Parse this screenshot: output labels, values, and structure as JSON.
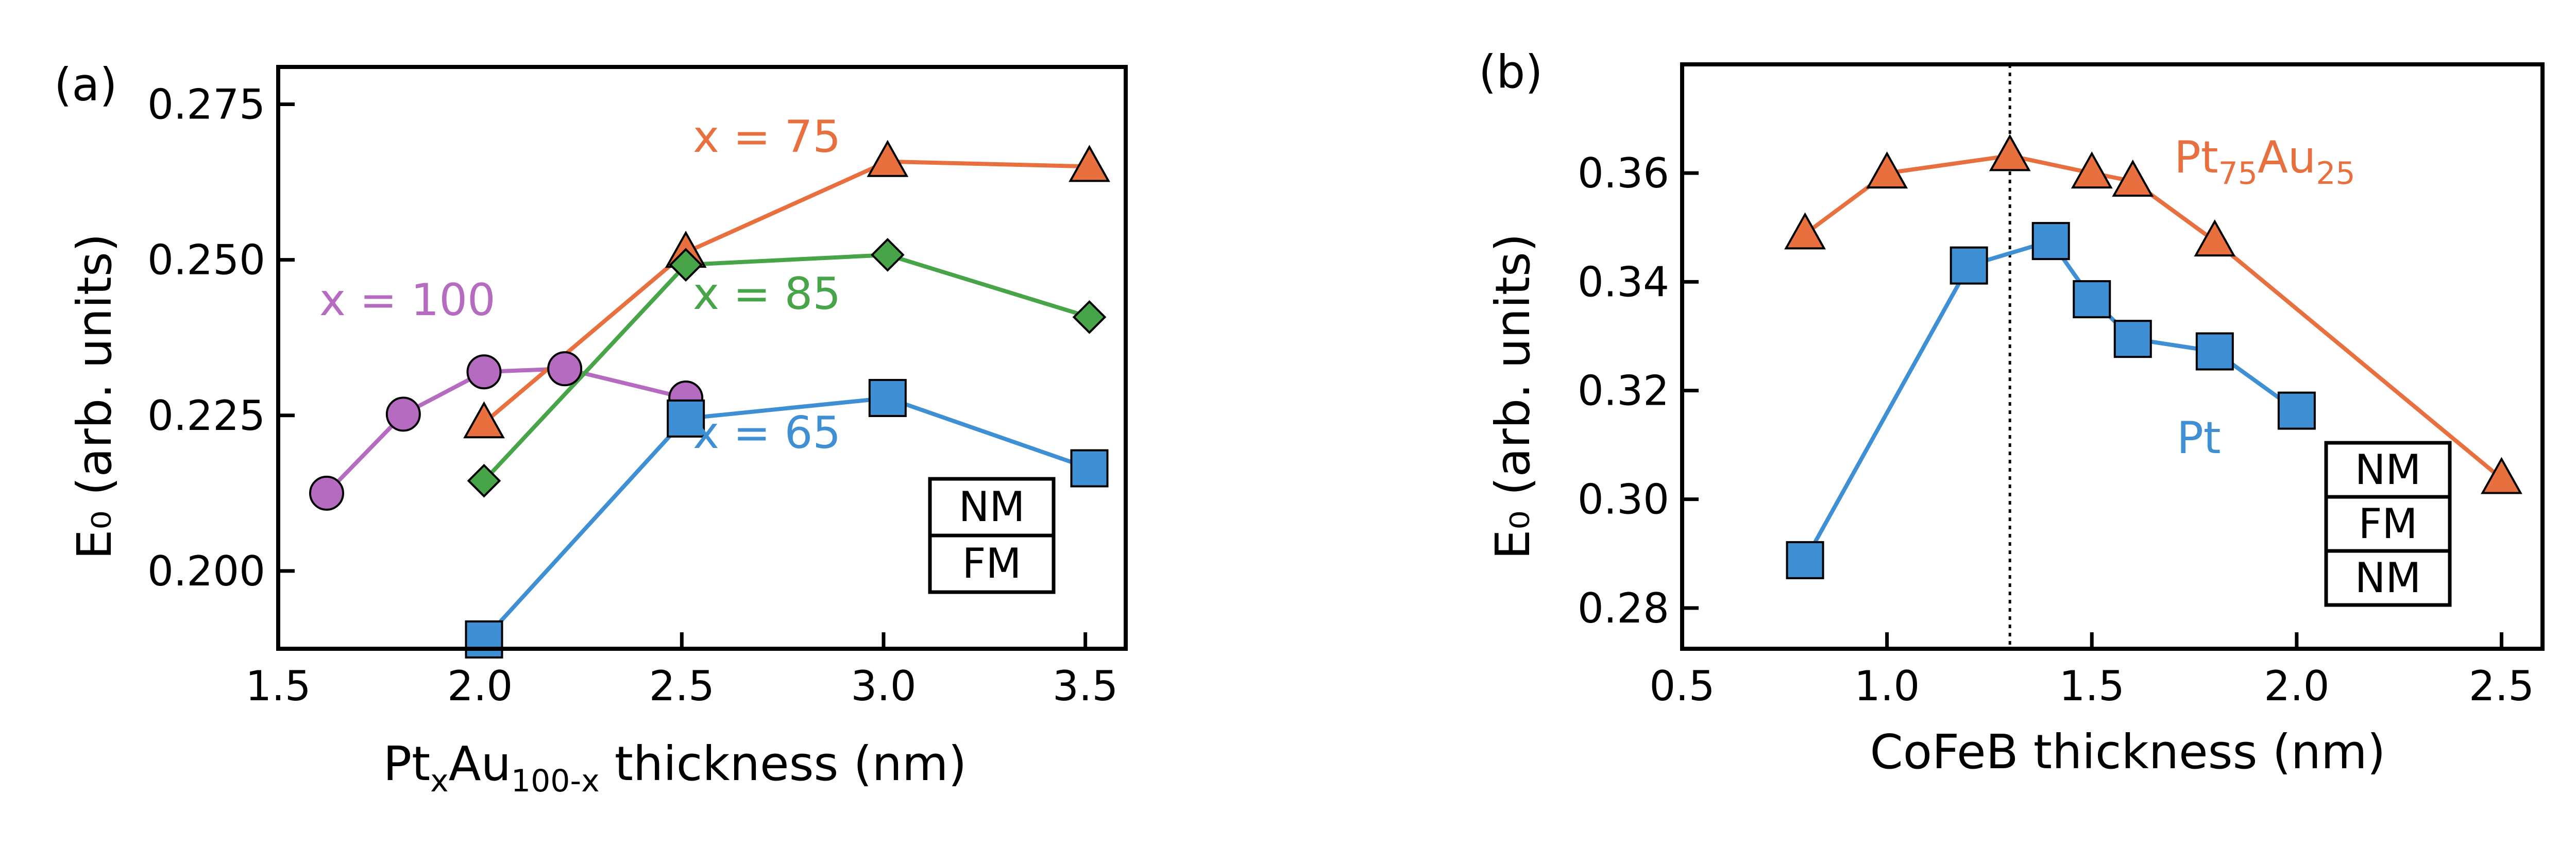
{
  "chart_data": [
    {
      "type": "line",
      "panel_label": "(a)",
      "ylabel": "E₀ (arb. units)",
      "xlabel_main": "Pt",
      "xlabel_sub1": "x",
      "xlabel_mid": "Au",
      "xlabel_sub2": "100-x",
      "xlabel_end": " thickness (nm)",
      "xlim": [
        1.5,
        3.6
      ],
      "ylim": [
        0.1875,
        0.281
      ],
      "xticks": [
        1.5,
        2.0,
        2.5,
        3.0,
        3.5
      ],
      "xtick_labels": [
        "1.5",
        "2.0",
        "2.5",
        "3.0",
        "3.5"
      ],
      "yticks": [
        0.2,
        0.225,
        0.25,
        0.275
      ],
      "ytick_labels": [
        "0.200",
        "0.225",
        "0.250",
        "0.275"
      ],
      "legend_stack": [
        "NM",
        "FM"
      ],
      "series": [
        {
          "name": "x = 100",
          "color": "#b56cc0",
          "marker": "circle",
          "x": [
            1.62,
            1.81,
            2.01,
            2.21,
            2.51
          ],
          "y": [
            0.2125,
            0.2252,
            0.232,
            0.2325,
            0.2278
          ]
        },
        {
          "name": "x = 75",
          "color": "#e8703f",
          "marker": "triangle",
          "x": [
            2.01,
            2.51,
            3.01,
            3.51
          ],
          "y": [
            0.2238,
            0.2512,
            0.2658,
            0.265
          ]
        },
        {
          "name": "x = 85",
          "color": "#47a448",
          "marker": "diamond",
          "x": [
            2.01,
            2.51,
            3.01,
            3.51
          ],
          "y": [
            0.2145,
            0.2492,
            0.2508,
            0.2408
          ]
        },
        {
          "name": "x = 65",
          "color": "#3e8fd3",
          "marker": "square",
          "x": [
            2.01,
            2.51,
            3.01,
            3.51
          ],
          "y": [
            0.189,
            0.2245,
            0.2278,
            0.2165
          ]
        }
      ]
    },
    {
      "type": "line",
      "panel_label": "(b)",
      "ylabel": "E₀ (arb. units)",
      "xlabel": "CoFeB thickness (nm)",
      "xlim": [
        0.5,
        2.6
      ],
      "ylim": [
        0.2725,
        0.38
      ],
      "xticks": [
        0.5,
        1.0,
        1.5,
        2.0,
        2.5
      ],
      "xtick_labels": [
        "0.5",
        "1.0",
        "1.5",
        "2.0",
        "2.5"
      ],
      "yticks": [
        0.28,
        0.3,
        0.32,
        0.34,
        0.36
      ],
      "ytick_labels": [
        "0.28",
        "0.30",
        "0.32",
        "0.34",
        "0.36"
      ],
      "vline_x": 1.3,
      "legend_stack": [
        "NM",
        "FM",
        "NM"
      ],
      "pt75_label": {
        "main1": "Pt",
        "sub1": "75",
        "main2": "Au",
        "sub2": "25"
      },
      "series": [
        {
          "name": "Pt75Au25",
          "color": "#e8703f",
          "marker": "triangle",
          "x": [
            0.8,
            1.0,
            1.3,
            1.5,
            1.6,
            1.8,
            2.5
          ],
          "y": [
            0.3488,
            0.36,
            0.3632,
            0.36,
            0.3585,
            0.3475,
            0.3038
          ]
        },
        {
          "name": "Pt",
          "label": "Pt",
          "color": "#3e8fd3",
          "marker": "square",
          "x": [
            0.8,
            1.2,
            1.4,
            1.5,
            1.6,
            1.8,
            2.0
          ],
          "y": [
            0.2888,
            0.343,
            0.3475,
            0.3368,
            0.3295,
            0.3272,
            0.3163
          ]
        }
      ]
    }
  ]
}
